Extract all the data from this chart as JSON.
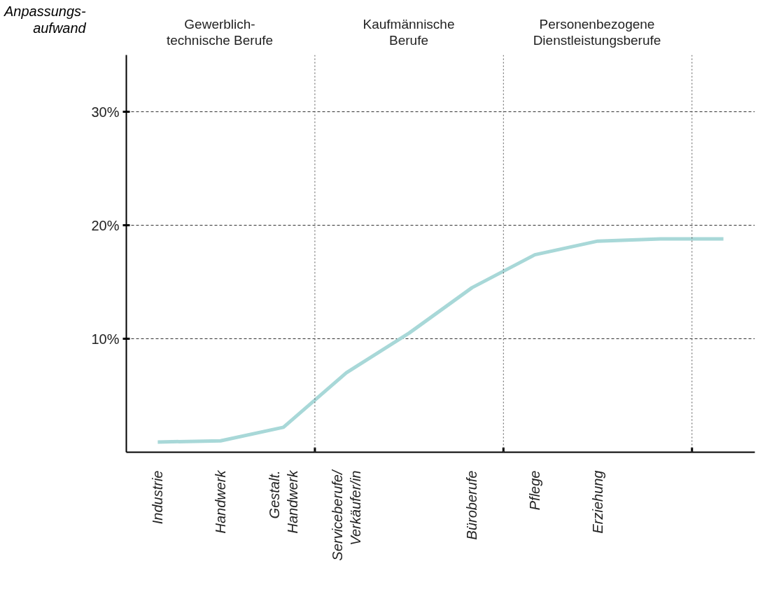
{
  "chart_data": {
    "type": "line",
    "ylabel": "Anpassungs-\naufwand",
    "categories": [
      "Industrie",
      "Handwerk",
      "Gestalt.\nHandwerk",
      "Serviceberufe/\nVerkäufer/in",
      null,
      "Büroberufe",
      "Pflege",
      "Erziehung",
      null,
      null
    ],
    "series": [
      {
        "color": "#a8d8d8",
        "values": [
          0.9,
          1.0,
          2.2,
          7.0,
          10.5,
          14.5,
          17.4,
          18.6,
          18.8,
          18.8
        ]
      }
    ],
    "ylim": [
      0,
      35
    ],
    "yticks": [
      {
        "value": 10,
        "label": "10%"
      },
      {
        "value": 20,
        "label": "20%"
      },
      {
        "value": 30,
        "label": "30%"
      }
    ],
    "grid": "y",
    "marker": "none",
    "line_style": "solid",
    "annotations": [
      "Gewerblich-\ntechnische Berufe",
      "Kaufmännische\nBerufe",
      "Personenbezogene\nDienstleistungsberufe"
    ]
  }
}
